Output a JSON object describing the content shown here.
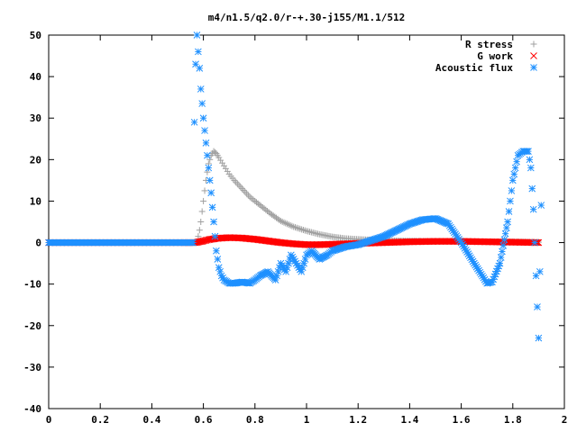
{
  "chart_data": {
    "type": "scatter",
    "title": "m4/n1.5/q2.0/r-+.30-j155/M1.1/512",
    "xlabel": "",
    "ylabel": "",
    "xlim": [
      0,
      2
    ],
    "ylim": [
      -40,
      50
    ],
    "x_ticks": [
      "0",
      "0.2",
      "0.4",
      "0.6",
      "0.8",
      "1",
      "1.2",
      "1.4",
      "1.6",
      "1.8",
      "2"
    ],
    "y_ticks": [
      "50",
      "40",
      "30",
      "20",
      "10",
      "0",
      "-10",
      "-20",
      "-30",
      "-40"
    ],
    "grid": false,
    "legend_position": "top-right",
    "series": [
      {
        "name": "R stress",
        "marker": "plus",
        "color": "#a0a0a0",
        "x": [
          0.0,
          0.1,
          0.2,
          0.3,
          0.4,
          0.5,
          0.575,
          0.58,
          0.585,
          0.59,
          0.595,
          0.6,
          0.605,
          0.61,
          0.615,
          0.62,
          0.63,
          0.64,
          0.65,
          0.66,
          0.68,
          0.7,
          0.72,
          0.75,
          0.78,
          0.8,
          0.83,
          0.86,
          0.9,
          0.95,
          1.0,
          1.05,
          1.1,
          1.15,
          1.2,
          1.3,
          1.4,
          1.5,
          1.6,
          1.7,
          1.8,
          1.9
        ],
        "y": [
          0,
          0,
          0,
          0,
          0,
          0,
          0,
          1.5,
          3,
          5,
          7.5,
          10,
          12.5,
          15,
          17,
          19,
          21,
          22,
          21.5,
          20.5,
          18.5,
          16.5,
          15,
          13,
          11,
          10,
          8.5,
          7,
          5.2,
          3.8,
          2.8,
          2,
          1.4,
          1,
          0.8,
          0.5,
          0.4,
          0.3,
          0.3,
          0.2,
          0.2,
          0.1
        ]
      },
      {
        "name": "G work",
        "marker": "cross",
        "color": "#ff0000",
        "x": [
          0.0,
          0.1,
          0.2,
          0.3,
          0.4,
          0.5,
          0.57,
          0.6,
          0.62,
          0.65,
          0.7,
          0.75,
          0.8,
          0.85,
          0.9,
          0.95,
          1.0,
          1.05,
          1.1,
          1.2,
          1.3,
          1.4,
          1.5,
          1.6,
          1.7,
          1.8,
          1.9
        ],
        "y": [
          0,
          0,
          0,
          0,
          0,
          0,
          0,
          0.4,
          0.7,
          1,
          1.2,
          1.1,
          0.8,
          0.4,
          0,
          -0.3,
          -0.5,
          -0.5,
          -0.4,
          -0.2,
          0,
          0.2,
          0.3,
          0.3,
          0.2,
          0.1,
          0
        ]
      },
      {
        "name": "Acoustic flux",
        "marker": "star",
        "color": "#1e90ff",
        "x": [
          0.0,
          0.1,
          0.2,
          0.3,
          0.4,
          0.5,
          0.56,
          0.565,
          0.57,
          0.575,
          0.58,
          0.585,
          0.59,
          0.6,
          0.61,
          0.62,
          0.63,
          0.64,
          0.65,
          0.66,
          0.67,
          0.68,
          0.7,
          0.72,
          0.75,
          0.78,
          0.8,
          0.82,
          0.85,
          0.88,
          0.9,
          0.92,
          0.94,
          0.96,
          0.98,
          1.0,
          1.02,
          1.05,
          1.08,
          1.1,
          1.15,
          1.2,
          1.25,
          1.3,
          1.35,
          1.4,
          1.45,
          1.5,
          1.55,
          1.6,
          1.65,
          1.7,
          1.72,
          1.75,
          1.78,
          1.8,
          1.82,
          1.84,
          1.86,
          1.87,
          1.88,
          1.89,
          1.9,
          1.91
        ],
        "y": [
          0,
          0,
          0,
          0,
          0,
          0,
          0,
          29,
          43,
          50,
          46,
          42,
          37,
          30,
          24,
          18,
          12,
          5,
          -2,
          -6,
          -8,
          -9,
          -9.8,
          -9.8,
          -9.5,
          -9.8,
          -9,
          -8,
          -7,
          -9,
          -5,
          -7,
          -3,
          -5,
          -7,
          -3,
          -2,
          -4,
          -3,
          -2,
          -1,
          -0.5,
          0.5,
          1.5,
          3,
          4.5,
          5.5,
          5.8,
          4.5,
          0,
          -5,
          -9.8,
          -9.5,
          -5,
          5,
          15,
          21,
          22,
          22,
          18,
          8,
          -8,
          -23,
          9
        ]
      }
    ]
  }
}
